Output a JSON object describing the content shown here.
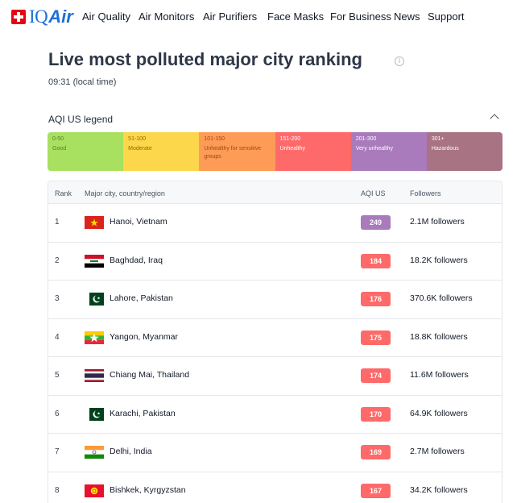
{
  "brand": {
    "iq": "IQ",
    "air": "Air"
  },
  "nav": [
    {
      "label": "Air Quality",
      "name": "nav-air-quality"
    },
    {
      "label": "Air Monitors",
      "name": "nav-air-monitors"
    },
    {
      "label": "Air Purifiers",
      "name": "nav-air-purifiers"
    },
    {
      "label": "Face Masks",
      "name": "nav-face-masks"
    },
    {
      "label": "For Business",
      "name": "nav-for-business"
    },
    {
      "label": "News",
      "name": "nav-news"
    },
    {
      "label": "Support",
      "name": "nav-support"
    }
  ],
  "page": {
    "title": "Live most polluted major city ranking",
    "time": "09:31 (local time)",
    "info_icon": "i"
  },
  "legend": {
    "title": "AQI US legend",
    "segments": [
      {
        "range": "0-50",
        "label": "Good",
        "color": "#a8e05f",
        "text_color": "#5b7f24"
      },
      {
        "range": "51-100",
        "label": "Moderate",
        "color": "#fdd74b",
        "text_color": "#8a6d00"
      },
      {
        "range": "101-150",
        "label": "Unhealthy for sensitive groups",
        "color": "#fe9b57",
        "text_color": "#9a4a12"
      },
      {
        "range": "151-200",
        "label": "Unhealthy",
        "color": "#fe6a69",
        "text_color": "#ffffff"
      },
      {
        "range": "201-300",
        "label": "Very unhealthy",
        "color": "#a97abc",
        "text_color": "#ffffff"
      },
      {
        "range": "301+",
        "label": "Hazardous",
        "color": "#a87383",
        "text_color": "#ffffff"
      }
    ]
  },
  "table": {
    "headers": {
      "rank": "Rank",
      "city": "Major city, country/region",
      "aqi": "AQI US",
      "followers": "Followers"
    },
    "rows": [
      {
        "rank": "1",
        "city": "Hanoi, Vietnam",
        "flag": "vietnam-flag-icon",
        "aqi": "249",
        "aqi_color": "#a97abc",
        "followers": "2.1M followers"
      },
      {
        "rank": "2",
        "city": "Baghdad, Iraq",
        "flag": "iraq-flag-icon",
        "aqi": "184",
        "aqi_color": "#fe6a69",
        "followers": "18.2K followers"
      },
      {
        "rank": "3",
        "city": "Lahore, Pakistan",
        "flag": "pakistan-flag-icon",
        "aqi": "176",
        "aqi_color": "#fe6a69",
        "followers": "370.6K followers"
      },
      {
        "rank": "4",
        "city": "Yangon, Myanmar",
        "flag": "myanmar-flag-icon",
        "aqi": "175",
        "aqi_color": "#fe6a69",
        "followers": "18.8K followers"
      },
      {
        "rank": "5",
        "city": "Chiang Mai, Thailand",
        "flag": "thailand-flag-icon",
        "aqi": "174",
        "aqi_color": "#fe6a69",
        "followers": "11.6M followers"
      },
      {
        "rank": "6",
        "city": "Karachi, Pakistan",
        "flag": "pakistan-flag-icon",
        "aqi": "170",
        "aqi_color": "#fe6a69",
        "followers": "64.9K followers"
      },
      {
        "rank": "7",
        "city": "Delhi, India",
        "flag": "india-flag-icon",
        "aqi": "169",
        "aqi_color": "#fe6a69",
        "followers": "2.7M followers"
      },
      {
        "rank": "8",
        "city": "Bishkek, Kyrgyzstan",
        "flag": "kyrgyzstan-flag-icon",
        "aqi": "167",
        "aqi_color": "#fe6a69",
        "followers": "34.2K followers"
      }
    ]
  }
}
